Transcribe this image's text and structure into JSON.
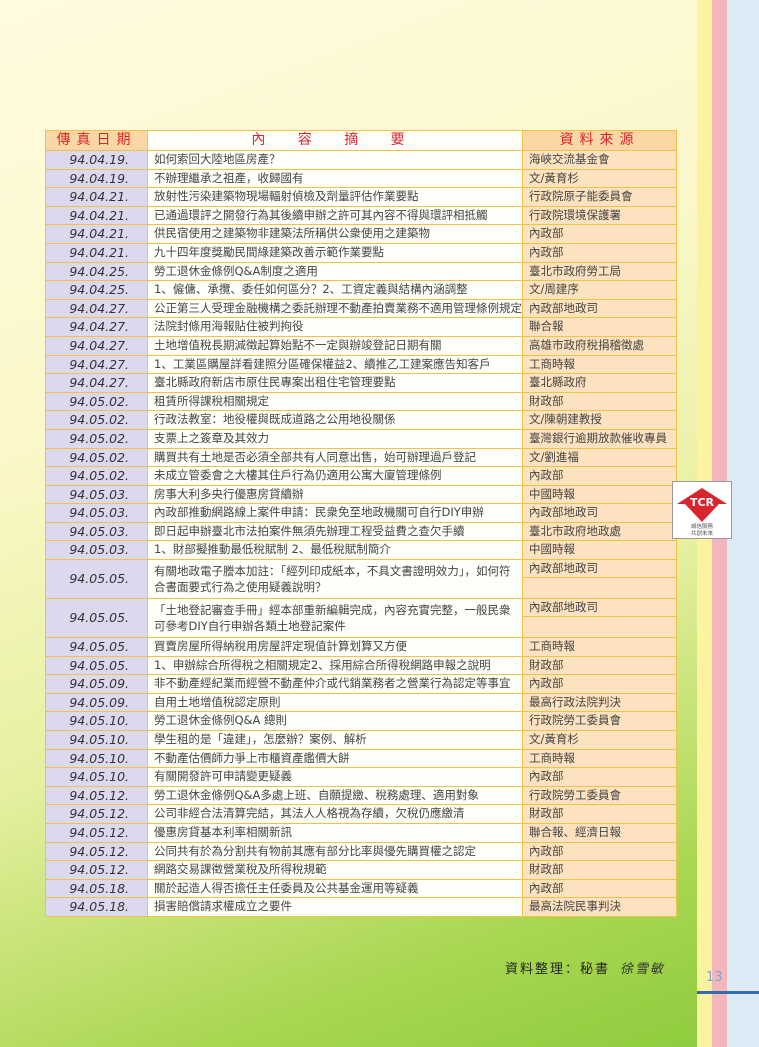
{
  "table": {
    "headers": {
      "date": "傳真日期",
      "content": "內 容 摘 要",
      "source": "資料來源"
    },
    "rows": [
      {
        "date": "94.04.19.",
        "content": "如何索回大陸地區房產？",
        "source": "海峽交流基金會"
      },
      {
        "date": "94.04.19.",
        "content": "不辦理繼承之祖產，收歸國有",
        "source": "文/黃育杉"
      },
      {
        "date": "94.04.21.",
        "content": "放射性污染建築物現場輻射偵檢及劑量評估作業要點",
        "source": "行政院原子能委員會"
      },
      {
        "date": "94.04.21.",
        "content": "已通過環評之開發行為其後續申辦之許可其內容不得與環評相抵觸",
        "source": "行政院環境保護署"
      },
      {
        "date": "94.04.21.",
        "content": "供民宿使用之建築物非建築法所稱供公衆使用之建築物",
        "source": "內政部"
      },
      {
        "date": "94.04.21.",
        "content": "九十四年度獎勵民間綠建築改善示範作業要點",
        "source": "內政部"
      },
      {
        "date": "94.04.25.",
        "content": "勞工退休金條例Q&A制度之適用",
        "source": "臺北市政府勞工局"
      },
      {
        "date": "94.04.25.",
        "content": "1、僱傭、承攬、委任如何區分？2、工資定義與結構內涵調整",
        "source": "文/周建序"
      },
      {
        "date": "94.04.27.",
        "content": "公正第三人受理金融機構之委託辦理不動產拍賣業務不適用管理條例規定",
        "source": "內政部地政司"
      },
      {
        "date": "94.04.27.",
        "content": "法院封條用海報貼住被判拘役",
        "source": "聯合報"
      },
      {
        "date": "94.04.27.",
        "content": "土地增值稅長期減徵起算始點不一定與辦竣登記日期有關",
        "source": "高雄市政府稅捐稽徵處"
      },
      {
        "date": "94.04.27.",
        "content": "1、工業區購屋詳看建照分區確保權益2、續推乙工建案應告知客戶",
        "source": "工商時報"
      },
      {
        "date": "94.04.27.",
        "content": "臺北縣政府新店市原住民專案出租住宅管理要點",
        "source": "臺北縣政府"
      },
      {
        "date": "94.05.02.",
        "content": "租賃所得課稅相關規定",
        "source": "財政部"
      },
      {
        "date": "94.05.02.",
        "content": "行政法教室：地役權與既成道路之公用地役關係",
        "source": "文/陳朝建教授"
      },
      {
        "date": "94.05.02.",
        "content": "支票上之簽章及其效力",
        "source": "臺灣銀行逾期放款催收專員"
      },
      {
        "date": "94.05.02.",
        "content": "購買共有土地是否必須全部共有人同意出售，始可辦理過戶登記",
        "source": "文/劉進福"
      },
      {
        "date": "94.05.02.",
        "content": "未成立管委會之大樓其住戶行為仍適用公寓大廈管理條例",
        "source": "內政部"
      },
      {
        "date": "94.05.03.",
        "content": "房事大利多央行優惠房貸續辦",
        "source": "中國時報"
      },
      {
        "date": "94.05.03.",
        "content": "內政部推動網路線上案件申請：民衆免至地政機關可自行DIY申辦",
        "source": "內政部地政司"
      },
      {
        "date": "94.05.03.",
        "content": "即日起申辦臺北市法拍案件無須先辦理工程受益費之查欠手續",
        "source": "臺北市政府地政處"
      },
      {
        "date": "94.05.03.",
        "content": "1、財部擬推動最低稅賦制 2、最低稅賦制簡介",
        "source": "中國時報"
      },
      {
        "date": "94.05.05.",
        "content": "有關地政電子謄本加註：「經列印成紙本，不具文書證明效力」，如何符合書面要式行為之使用疑義說明？",
        "source": "內政部地政司",
        "tall": true
      },
      {
        "date": "94.05.05.",
        "content": "「土地登記審查手冊」經本部重新編輯完成，內容充實完整，一般民衆可參考DIY自行申辦各類土地登記案件",
        "source": "內政部地政司",
        "tall": true
      },
      {
        "date": "94.05.05.",
        "content": "買賣房屋所得納稅用房屋評定現值計算划算又方便",
        "source": "工商時報"
      },
      {
        "date": "94.05.05.",
        "content": "1、申辦綜合所得稅之相關規定2、採用綜合所得稅網路申報之說明",
        "source": "財政部"
      },
      {
        "date": "94.05.09.",
        "content": "非不動產經紀業而經營不動產仲介或代銷業務者之營業行為認定等事宜",
        "source": "內政部"
      },
      {
        "date": "94.05.09.",
        "content": "自用土地增值稅認定原則",
        "source": "最高行政法院判決"
      },
      {
        "date": "94.05.10.",
        "content": "勞工退休金條例Q&A 總則",
        "source": "行政院勞工委員會"
      },
      {
        "date": "94.05.10.",
        "content": "學生租的是「違建」，怎麼辦？案例、解析",
        "source": "文/黃育杉"
      },
      {
        "date": "94.05.10.",
        "content": "不動產估價師力爭上市櫃資產鑑價大餅",
        "source": "工商時報"
      },
      {
        "date": "94.05.10.",
        "content": "有關開發許可申請變更疑義",
        "source": "內政部"
      },
      {
        "date": "94.05.12.",
        "content": "勞工退休金條例Q&A多處上班、自願提繳、稅務處理、適用對象",
        "source": "行政院勞工委員會"
      },
      {
        "date": "94.05.12.",
        "content": "公司非經合法清算完結，其法人人格視為存續，欠稅仍應繳清",
        "source": "財政部"
      },
      {
        "date": "94.05.12.",
        "content": "優惠房貸基本利率相關新訊",
        "source": "聯合報、經濟日報"
      },
      {
        "date": "94.05.12.",
        "content": "公同共有於為分割共有物前其應有部分比率與優先購買權之認定",
        "source": "內政部"
      },
      {
        "date": "94.05.12.",
        "content": "網路交易課徵營業稅及所得稅規範",
        "source": "財政部"
      },
      {
        "date": "94.05.18.",
        "content": "關於起造人得否擔任主任委員及公共基金運用等疑義",
        "source": "內政部"
      },
      {
        "date": "94.05.18.",
        "content": "損害賠償請求權成立之要件",
        "source": "最高法院民事判決"
      }
    ]
  },
  "credit": {
    "label": "資料整理：秘書",
    "signature": "徐雪敏"
  },
  "logo": {
    "text": "TCR",
    "slogan_1": "誠信服務",
    "slogan_2": "共創未來"
  },
  "page_number": "13",
  "colors": {
    "header_text": "#d8262e",
    "date_col": "#dcd8ee",
    "source_col": "#fde2c0",
    "border": "#f0c24a"
  }
}
